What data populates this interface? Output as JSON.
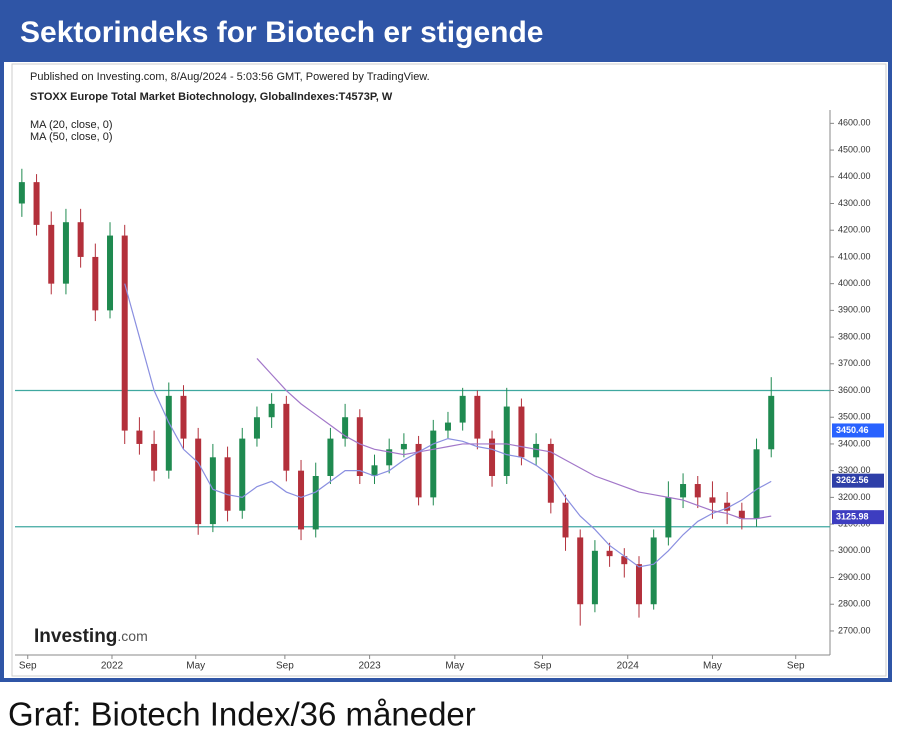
{
  "header": {
    "title": "Sektorindeks for Biotech er stigende"
  },
  "caption": "Graf: Biotech Index/36 måneder",
  "chart_data": {
    "type": "candlestick",
    "published": "Published on Investing.com, 8/Aug/2024 - 5:03:56 GMT, Powered by TradingView.",
    "title": "STOXX Europe Total Market Biotechnology, GlobalIndexes:T4573P, W",
    "logo": {
      "main": "Investing",
      "suffix": ".com"
    },
    "x": [
      0,
      3,
      6,
      9,
      12,
      15,
      18,
      21,
      24,
      27,
      30,
      33,
      36,
      39,
      42,
      45,
      48,
      51,
      54,
      57,
      60,
      63,
      66,
      69,
      72,
      75,
      78,
      81,
      84,
      87,
      90,
      93,
      96,
      99,
      102,
      105,
      108,
      111,
      114,
      117,
      120,
      123,
      126,
      129,
      132,
      135,
      138,
      141,
      144,
      147,
      150,
      153
    ],
    "open": [
      4300,
      4380,
      4220,
      4000,
      4230,
      4100,
      3900,
      4180,
      3450,
      3400,
      3300,
      3580,
      3420,
      3100,
      3350,
      3150,
      3420,
      3500,
      3550,
      3300,
      3080,
      3280,
      3420,
      3500,
      3280,
      3320,
      3380,
      3400,
      3200,
      3450,
      3480,
      3580,
      3420,
      3280,
      3540,
      3350,
      3400,
      3180,
      3050,
      2800,
      3000,
      2980,
      2950,
      2800,
      3050,
      3200,
      3250,
      3200,
      3180,
      3150,
      3120,
      3380
    ],
    "high": [
      4430,
      4410,
      4270,
      4280,
      4280,
      4150,
      4230,
      4220,
      3500,
      3450,
      3630,
      3620,
      3460,
      3400,
      3390,
      3460,
      3540,
      3590,
      3580,
      3340,
      3330,
      3460,
      3550,
      3530,
      3360,
      3420,
      3440,
      3430,
      3490,
      3520,
      3610,
      3600,
      3450,
      3610,
      3570,
      3440,
      3420,
      3210,
      3080,
      3040,
      3030,
      3010,
      2980,
      3080,
      3260,
      3290,
      3280,
      3260,
      3220,
      3180,
      3420,
      3650
    ],
    "low": [
      4250,
      4180,
      3960,
      3960,
      4060,
      3860,
      3870,
      3400,
      3360,
      3260,
      3270,
      3380,
      3060,
      3070,
      3110,
      3120,
      3390,
      3460,
      3260,
      3040,
      3050,
      3250,
      3390,
      3250,
      3250,
      3290,
      3350,
      3170,
      3170,
      3420,
      3450,
      3380,
      3240,
      3250,
      3320,
      3320,
      3140,
      3000,
      2720,
      2770,
      2940,
      2900,
      2750,
      2780,
      3020,
      3160,
      3160,
      3120,
      3100,
      3080,
      3090,
      3350
    ],
    "close": [
      4380,
      4220,
      4000,
      4230,
      4100,
      3900,
      4180,
      3450,
      3400,
      3300,
      3580,
      3420,
      3100,
      3350,
      3150,
      3420,
      3500,
      3550,
      3300,
      3080,
      3280,
      3420,
      3500,
      3280,
      3320,
      3380,
      3400,
      3200,
      3450,
      3480,
      3580,
      3420,
      3280,
      3540,
      3350,
      3400,
      3180,
      3050,
      2800,
      3000,
      2980,
      2950,
      2800,
      3050,
      3200,
      3250,
      3200,
      3180,
      3150,
      3120,
      3380,
      3580
    ],
    "up_color": "#1f8a50",
    "down_color": "#b3303b",
    "series": [
      {
        "name": "MA (20, close, 0)",
        "color": "#8a8fe0",
        "values": [
          null,
          null,
          null,
          null,
          null,
          null,
          null,
          4000,
          3800,
          3600,
          3480,
          3380,
          3330,
          3230,
          3210,
          3200,
          3240,
          3260,
          3220,
          3200,
          3220,
          3260,
          3300,
          3300,
          3280,
          3300,
          3340,
          3370,
          3400,
          3420,
          3410,
          3390,
          3380,
          3360,
          3350,
          3320,
          3280,
          3200,
          3130,
          3080,
          3020,
          2980,
          2940,
          2950,
          3000,
          3060,
          3110,
          3140,
          3160,
          3190,
          3230,
          3260
        ]
      },
      {
        "name": "MA (50, close, 0)",
        "color": "#a277c9",
        "values": [
          null,
          null,
          null,
          null,
          null,
          null,
          null,
          null,
          null,
          null,
          null,
          null,
          null,
          null,
          null,
          null,
          3720,
          3660,
          3600,
          3550,
          3510,
          3470,
          3430,
          3400,
          3380,
          3370,
          3360,
          3370,
          3380,
          3390,
          3400,
          3400,
          3400,
          3400,
          3390,
          3380,
          3370,
          3340,
          3310,
          3280,
          3260,
          3240,
          3220,
          3210,
          3200,
          3190,
          3170,
          3150,
          3140,
          3120,
          3120,
          3130
        ]
      }
    ],
    "levels": [
      3600,
      3090
    ],
    "level_color": "#3fa8a0",
    "price_labels": [
      {
        "value": 3450.46,
        "color": "#2962ff"
      },
      {
        "value": 3262.56,
        "color": "#2e3fa8"
      },
      {
        "value": 3125.98,
        "color": "#3d3dc0"
      }
    ],
    "xlim": [
      -1.4,
      165
    ],
    "xticks": [
      {
        "value": 1.2,
        "label": "Sep"
      },
      {
        "value": 18.4,
        "label": "2022"
      },
      {
        "value": 35.5,
        "label": "May"
      },
      {
        "value": 53.7,
        "label": "Sep"
      },
      {
        "value": 71,
        "label": "2023"
      },
      {
        "value": 88.4,
        "label": "May"
      },
      {
        "value": 106.3,
        "label": "Sep"
      },
      {
        "value": 123.7,
        "label": "2024"
      },
      {
        "value": 141,
        "label": "May"
      },
      {
        "value": 158,
        "label": "Sep"
      }
    ],
    "ylim": [
      2610,
      4650
    ],
    "yticks": [
      {
        "value": 2700,
        "label": "2700.00"
      },
      {
        "value": 2800,
        "label": "2800.00"
      },
      {
        "value": 2900,
        "label": "2900.00"
      },
      {
        "value": 3000,
        "label": "3000.00"
      },
      {
        "value": 3100,
        "label": "3100.00"
      },
      {
        "value": 3200,
        "label": "3200.00"
      },
      {
        "value": 3300,
        "label": "3300.00"
      },
      {
        "value": 3400,
        "label": "3400.00"
      },
      {
        "value": 3500,
        "label": "3500.00"
      },
      {
        "value": 3600,
        "label": "3600.00"
      },
      {
        "value": 3700,
        "label": "3700.00"
      },
      {
        "value": 3800,
        "label": "3800.00"
      },
      {
        "value": 3900,
        "label": "3900.00"
      },
      {
        "value": 4000,
        "label": "4000.00"
      },
      {
        "value": 4100,
        "label": "4100.00"
      },
      {
        "value": 4200,
        "label": "4200.00"
      },
      {
        "value": 4300,
        "label": "4300.00"
      },
      {
        "value": 4400,
        "label": "4400.00"
      },
      {
        "value": 4500,
        "label": "4500.00"
      },
      {
        "value": 4600,
        "label": "4600.00"
      }
    ]
  }
}
